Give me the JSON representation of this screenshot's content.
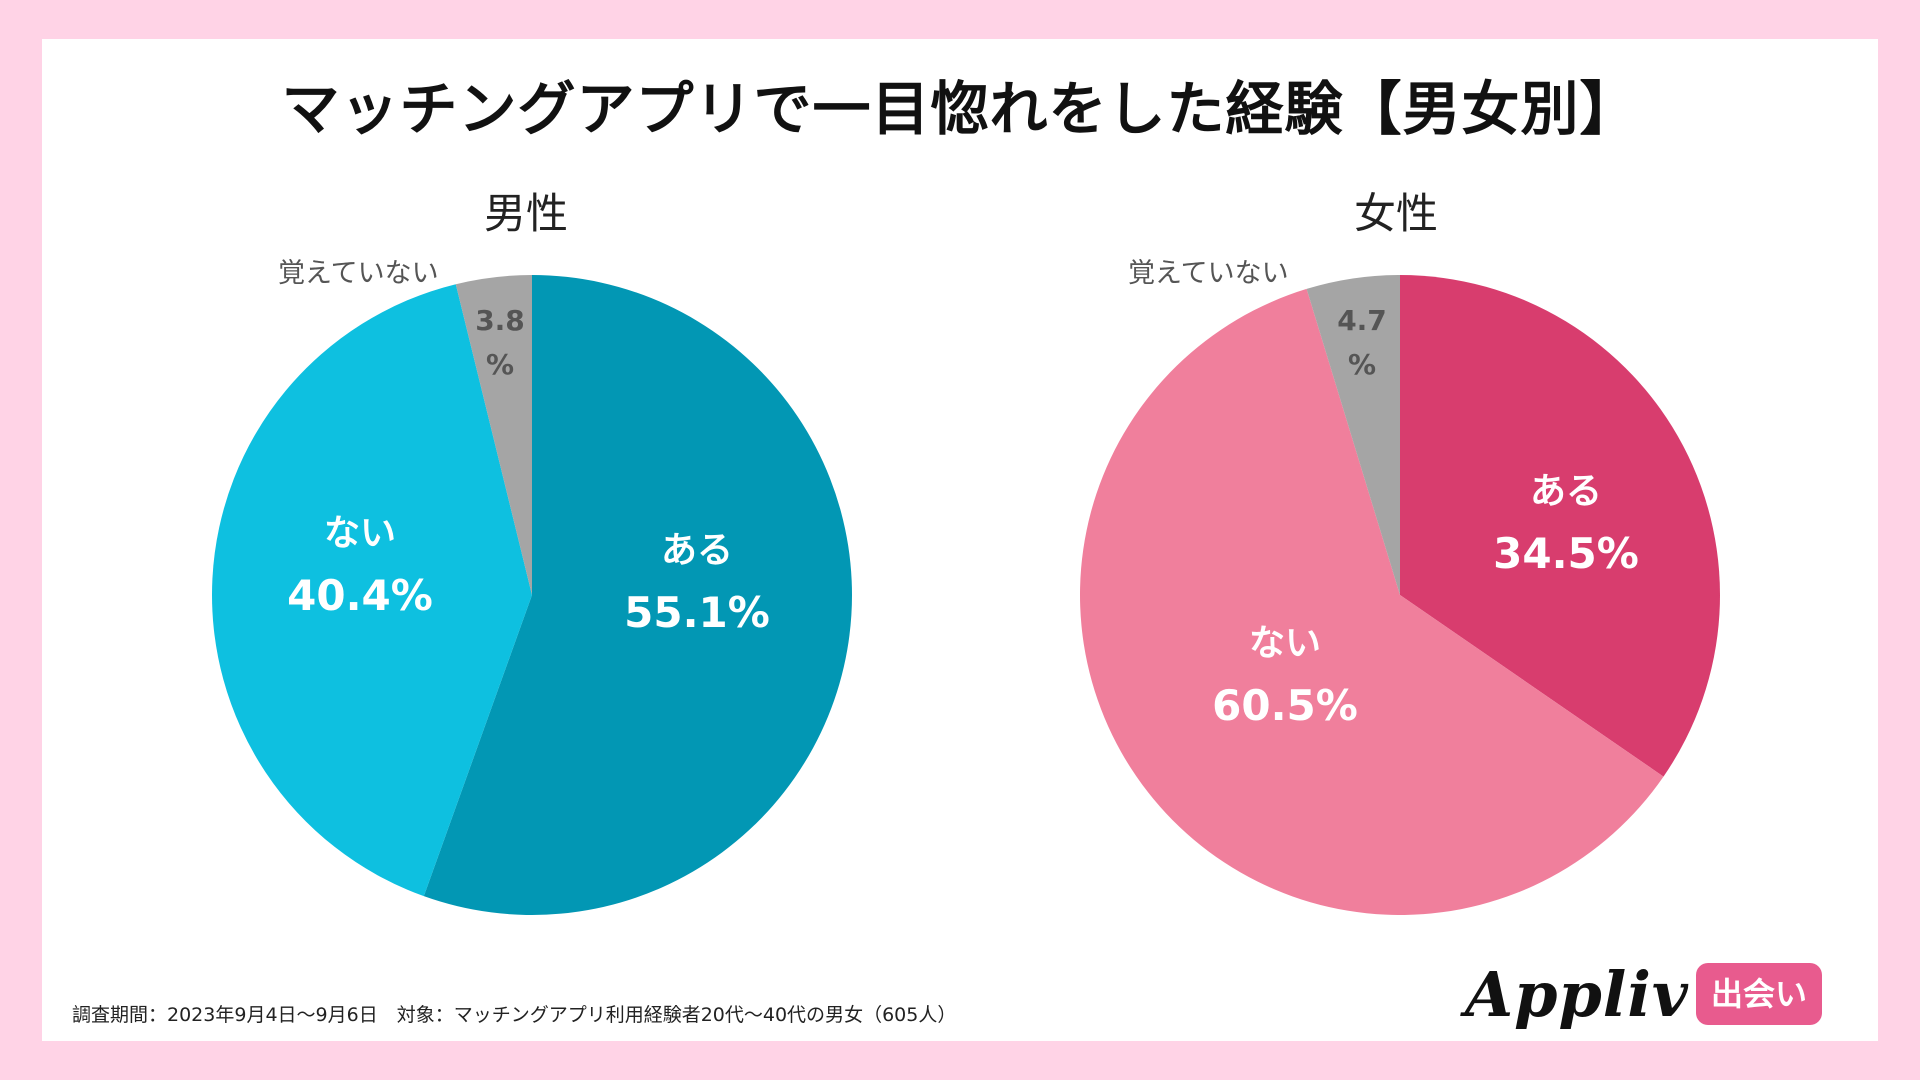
{
  "title": "マッチングアプリで一目惚れをした経験【男女別】",
  "footnote": "調査期間：2023年9月4日〜9月6日　対象：マッチングアプリ利用経験者20代〜40代の男女（605人）",
  "logo": {
    "wordmark": "Appliv",
    "badge": "出会い"
  },
  "chart_data": [
    {
      "type": "pie",
      "title": "男性",
      "slices": [
        {
          "label": "ある",
          "value": 55.1,
          "display": "55.1%",
          "color": "#0297b4"
        },
        {
          "label": "ない",
          "value": 40.4,
          "display": "40.4%",
          "color": "#0ec0e0"
        },
        {
          "label": "覚えていない",
          "value": 3.8,
          "display": "3.8%",
          "color": "#a5a5a5"
        }
      ]
    },
    {
      "type": "pie",
      "title": "女性",
      "slices": [
        {
          "label": "ある",
          "value": 34.5,
          "display": "34.5%",
          "color": "#d83d6e"
        },
        {
          "label": "ない",
          "value": 60.5,
          "display": "60.5%",
          "color": "#f07f9c"
        },
        {
          "label": "覚えていない",
          "value": 4.7,
          "display": "4.7%",
          "color": "#a5a5a5"
        }
      ]
    }
  ]
}
